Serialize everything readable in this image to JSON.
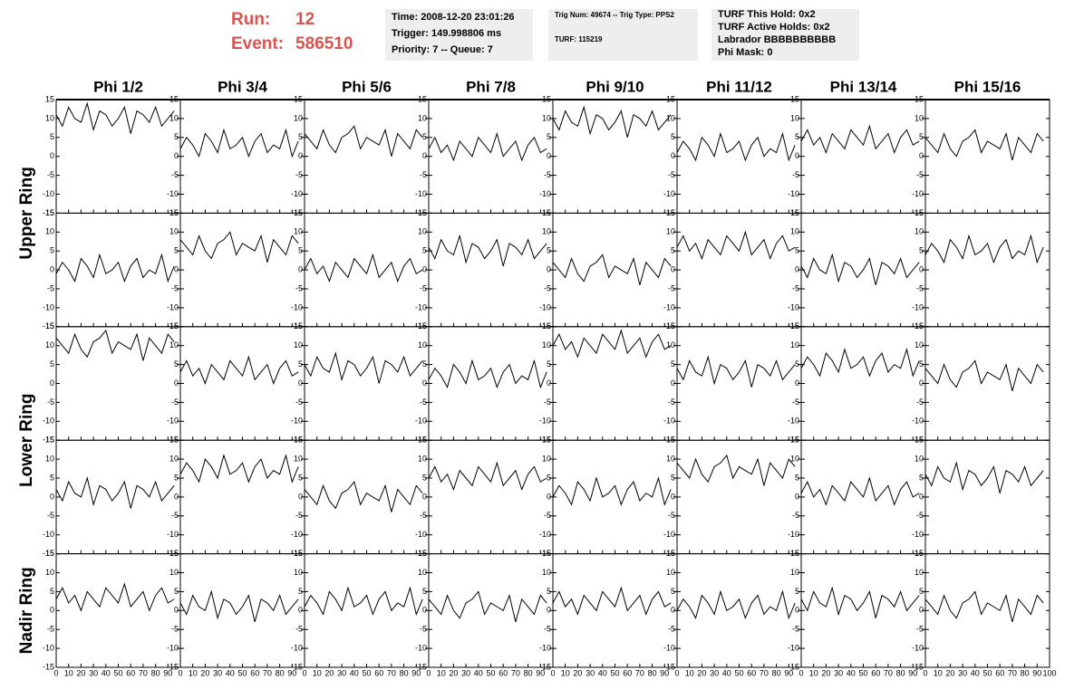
{
  "header": {
    "run_label": "Run:",
    "run": "12",
    "event_label": "Event:",
    "event": "586510",
    "box1": [
      "Time: 2008-12-20 23:01:26",
      "Trigger: 149.998806 ms",
      "Priority: 7 -- Queue: 7"
    ],
    "box2": [
      "Trig Num: 49674 -- Trig Type: PPS2",
      "TURF: 115219"
    ],
    "box3": [
      "TURF This Hold: 0x2",
      "TURF Active Holds: 0x2",
      "Labrador BBBBBBBBBB",
      "Phi Mask: 0"
    ]
  },
  "chart_data": {
    "type": "line",
    "columns": [
      "Phi 1/2",
      "Phi 3/4",
      "Phi 5/6",
      "Phi 7/8",
      "Phi 9/10",
      "Phi 11/12",
      "Phi 13/14",
      "Phi 15/16"
    ],
    "rings": [
      "Upper Ring",
      "Lower Ring",
      "Nadir Ring"
    ],
    "xlim": [
      0,
      100
    ],
    "xticks": [
      0,
      10,
      20,
      30,
      40,
      50,
      60,
      70,
      80,
      90,
      100
    ],
    "ylim": [
      -15,
      15
    ],
    "yticks": [
      -15,
      -10,
      -5,
      0,
      5,
      10,
      15
    ],
    "color": "#000000",
    "x": [
      0,
      5,
      10,
      15,
      20,
      25,
      30,
      35,
      40,
      45,
      50,
      55,
      60,
      65,
      70,
      75,
      80,
      85,
      90,
      95
    ],
    "series": [
      {
        "values": [
          11,
          8,
          13,
          10,
          9,
          14,
          7,
          12,
          11,
          8,
          10,
          13,
          6,
          12,
          11,
          9,
          13,
          8,
          10,
          12
        ]
      },
      {
        "values": [
          2,
          5,
          3,
          0,
          6,
          4,
          1,
          7,
          2,
          3,
          5,
          0,
          4,
          6,
          1,
          3,
          2,
          7,
          0,
          4
        ]
      },
      {
        "values": [
          6,
          4,
          2,
          7,
          3,
          1,
          5,
          6,
          8,
          2,
          5,
          4,
          3,
          7,
          0,
          6,
          4,
          2,
          7,
          5
        ]
      },
      {
        "values": [
          2,
          5,
          1,
          3,
          -1,
          4,
          2,
          0,
          5,
          3,
          1,
          6,
          0,
          2,
          4,
          -1,
          3,
          5,
          1,
          2
        ]
      },
      {
        "values": [
          10,
          7,
          12,
          9,
          8,
          13,
          6,
          11,
          10,
          7,
          9,
          12,
          5,
          11,
          10,
          8,
          12,
          7,
          9,
          11
        ]
      },
      {
        "values": [
          1,
          4,
          2,
          -1,
          5,
          3,
          0,
          6,
          1,
          2,
          4,
          -1,
          3,
          5,
          0,
          2,
          1,
          6,
          -1,
          3
        ]
      },
      {
        "values": [
          4,
          7,
          3,
          5,
          1,
          6,
          4,
          2,
          7,
          5,
          3,
          8,
          2,
          4,
          6,
          1,
          5,
          7,
          3,
          4
        ]
      },
      {
        "values": [
          5,
          3,
          1,
          6,
          2,
          0,
          4,
          5,
          7,
          1,
          4,
          3,
          2,
          6,
          -1,
          5,
          3,
          1,
          6,
          4
        ]
      },
      {
        "values": [
          -1,
          2,
          0,
          -3,
          3,
          1,
          -2,
          4,
          -1,
          0,
          2,
          -3,
          1,
          3,
          -2,
          0,
          -1,
          4,
          -3,
          1
        ]
      },
      {
        "values": [
          8,
          6,
          4,
          9,
          5,
          3,
          7,
          8,
          10,
          4,
          7,
          6,
          5,
          9,
          2,
          8,
          6,
          4,
          9,
          7
        ]
      },
      {
        "values": [
          0,
          3,
          -1,
          1,
          -3,
          2,
          0,
          -2,
          3,
          1,
          -1,
          4,
          -2,
          0,
          2,
          -3,
          1,
          3,
          -1,
          0
        ]
      },
      {
        "values": [
          6,
          3,
          8,
          5,
          4,
          9,
          2,
          7,
          6,
          3,
          5,
          8,
          1,
          7,
          6,
          4,
          8,
          3,
          5,
          7
        ]
      },
      {
        "values": [
          2,
          0,
          -2,
          3,
          -1,
          -3,
          1,
          2,
          4,
          -2,
          1,
          0,
          -1,
          3,
          -4,
          2,
          0,
          -2,
          3,
          1
        ]
      },
      {
        "values": [
          6,
          9,
          5,
          7,
          3,
          8,
          6,
          4,
          9,
          7,
          5,
          10,
          4,
          6,
          8,
          3,
          7,
          9,
          5,
          6
        ]
      },
      {
        "values": [
          1,
          -2,
          3,
          0,
          -1,
          4,
          -3,
          2,
          1,
          -2,
          0,
          3,
          -4,
          2,
          1,
          -1,
          3,
          -2,
          0,
          2
        ]
      },
      {
        "values": [
          4,
          7,
          5,
          2,
          8,
          6,
          3,
          9,
          4,
          5,
          7,
          2,
          6,
          8,
          3,
          5,
          4,
          9,
          2,
          6
        ]
      },
      {
        "values": [
          12,
          10,
          8,
          13,
          9,
          7,
          11,
          12,
          14,
          8,
          11,
          10,
          9,
          13,
          6,
          12,
          10,
          8,
          13,
          11
        ]
      },
      {
        "values": [
          3,
          6,
          2,
          4,
          0,
          5,
          3,
          1,
          6,
          4,
          2,
          7,
          1,
          3,
          5,
          0,
          4,
          6,
          2,
          3
        ]
      },
      {
        "values": [
          5,
          2,
          7,
          4,
          3,
          8,
          1,
          6,
          5,
          2,
          4,
          7,
          0,
          6,
          5,
          3,
          7,
          2,
          4,
          6
        ]
      },
      {
        "values": [
          1,
          4,
          2,
          -1,
          5,
          3,
          0,
          6,
          1,
          2,
          4,
          -1,
          3,
          5,
          0,
          2,
          1,
          6,
          -1,
          3
        ]
      },
      {
        "values": [
          10,
          13,
          9,
          11,
          7,
          12,
          10,
          8,
          13,
          11,
          9,
          14,
          8,
          10,
          12,
          7,
          11,
          13,
          9,
          10
        ]
      },
      {
        "values": [
          4,
          1,
          6,
          3,
          2,
          7,
          0,
          5,
          4,
          1,
          3,
          6,
          -1,
          5,
          4,
          2,
          6,
          1,
          3,
          5
        ]
      },
      {
        "values": [
          4,
          7,
          5,
          2,
          8,
          6,
          3,
          9,
          4,
          5,
          7,
          2,
          6,
          8,
          3,
          5,
          4,
          9,
          2,
          6
        ]
      },
      {
        "values": [
          4,
          2,
          0,
          5,
          1,
          -1,
          3,
          4,
          6,
          0,
          3,
          2,
          1,
          5,
          -2,
          4,
          2,
          0,
          5,
          3
        ]
      },
      {
        "values": [
          2,
          -1,
          4,
          1,
          0,
          5,
          -2,
          3,
          2,
          -1,
          1,
          4,
          -3,
          3,
          2,
          0,
          4,
          -1,
          1,
          3
        ]
      },
      {
        "values": [
          6,
          9,
          7,
          4,
          10,
          8,
          5,
          11,
          6,
          7,
          9,
          4,
          8,
          10,
          5,
          7,
          6,
          11,
          4,
          8
        ]
      },
      {
        "values": [
          2,
          0,
          -2,
          3,
          -1,
          -3,
          1,
          2,
          4,
          -2,
          1,
          0,
          -1,
          3,
          -4,
          2,
          0,
          -2,
          3,
          1
        ]
      },
      {
        "values": [
          5,
          8,
          4,
          6,
          2,
          7,
          5,
          3,
          8,
          6,
          4,
          9,
          3,
          5,
          7,
          2,
          6,
          8,
          4,
          5
        ]
      },
      {
        "values": [
          0,
          3,
          1,
          -2,
          4,
          2,
          -1,
          5,
          0,
          1,
          3,
          -2,
          2,
          4,
          -1,
          1,
          0,
          5,
          -2,
          2
        ]
      },
      {
        "values": [
          9,
          7,
          5,
          10,
          6,
          4,
          8,
          9,
          11,
          5,
          8,
          7,
          6,
          10,
          3,
          9,
          7,
          5,
          10,
          8
        ]
      },
      {
        "values": [
          1,
          4,
          0,
          2,
          -2,
          3,
          1,
          -1,
          4,
          2,
          0,
          5,
          -1,
          1,
          3,
          -2,
          2,
          4,
          0,
          1
        ]
      },
      {
        "values": [
          6,
          3,
          8,
          5,
          4,
          9,
          2,
          7,
          6,
          3,
          5,
          8,
          1,
          7,
          6,
          4,
          8,
          3,
          5,
          7
        ]
      },
      {
        "values": [
          3,
          6,
          2,
          4,
          0,
          5,
          3,
          1,
          6,
          4,
          2,
          7,
          1,
          3,
          5,
          0,
          4,
          6,
          2,
          3
        ]
      },
      {
        "values": [
          2,
          -1,
          4,
          1,
          0,
          5,
          -2,
          3,
          2,
          -1,
          1,
          4,
          -3,
          3,
          2,
          0,
          4,
          -1,
          1,
          3
        ]
      },
      {
        "values": [
          1,
          4,
          2,
          -1,
          5,
          3,
          0,
          6,
          1,
          2,
          4,
          -1,
          3,
          5,
          0,
          2,
          1,
          6,
          -1,
          3
        ]
      },
      {
        "values": [
          3,
          1,
          -1,
          4,
          0,
          -2,
          2,
          3,
          5,
          -1,
          2,
          1,
          0,
          4,
          -3,
          3,
          1,
          -1,
          4,
          2
        ]
      },
      {
        "values": [
          2,
          5,
          1,
          3,
          -1,
          4,
          2,
          0,
          5,
          3,
          1,
          6,
          0,
          2,
          4,
          -1,
          3,
          5,
          1,
          2
        ]
      },
      {
        "values": [
          0,
          3,
          1,
          -2,
          4,
          2,
          -1,
          5,
          0,
          1,
          3,
          -2,
          2,
          4,
          -1,
          1,
          0,
          5,
          -2,
          2
        ]
      },
      {
        "values": [
          3,
          0,
          5,
          2,
          1,
          6,
          -1,
          4,
          3,
          0,
          2,
          5,
          -2,
          4,
          3,
          1,
          5,
          0,
          2,
          4
        ]
      },
      {
        "values": [
          3,
          1,
          -1,
          4,
          0,
          -2,
          2,
          3,
          5,
          -1,
          2,
          1,
          0,
          4,
          -3,
          3,
          1,
          -1,
          4,
          2
        ]
      }
    ]
  }
}
